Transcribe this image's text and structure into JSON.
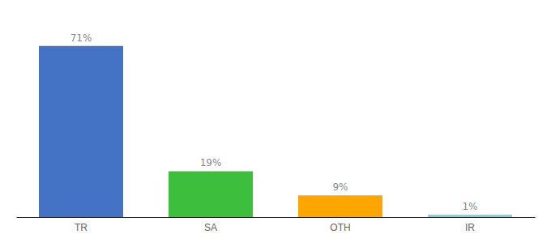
{
  "chart_data": {
    "type": "bar",
    "categories": [
      "TR",
      "SA",
      "OTH",
      "IR"
    ],
    "values": [
      71,
      19,
      9,
      1
    ],
    "value_labels": [
      "71%",
      "19%",
      "9%",
      "1%"
    ],
    "colors": [
      "#4472C4",
      "#3DBF3D",
      "#FFA500",
      "#87CEEB"
    ],
    "ylim": [
      0,
      82
    ],
    "data_labels": true,
    "tick_labels": "x",
    "grid": false
  }
}
